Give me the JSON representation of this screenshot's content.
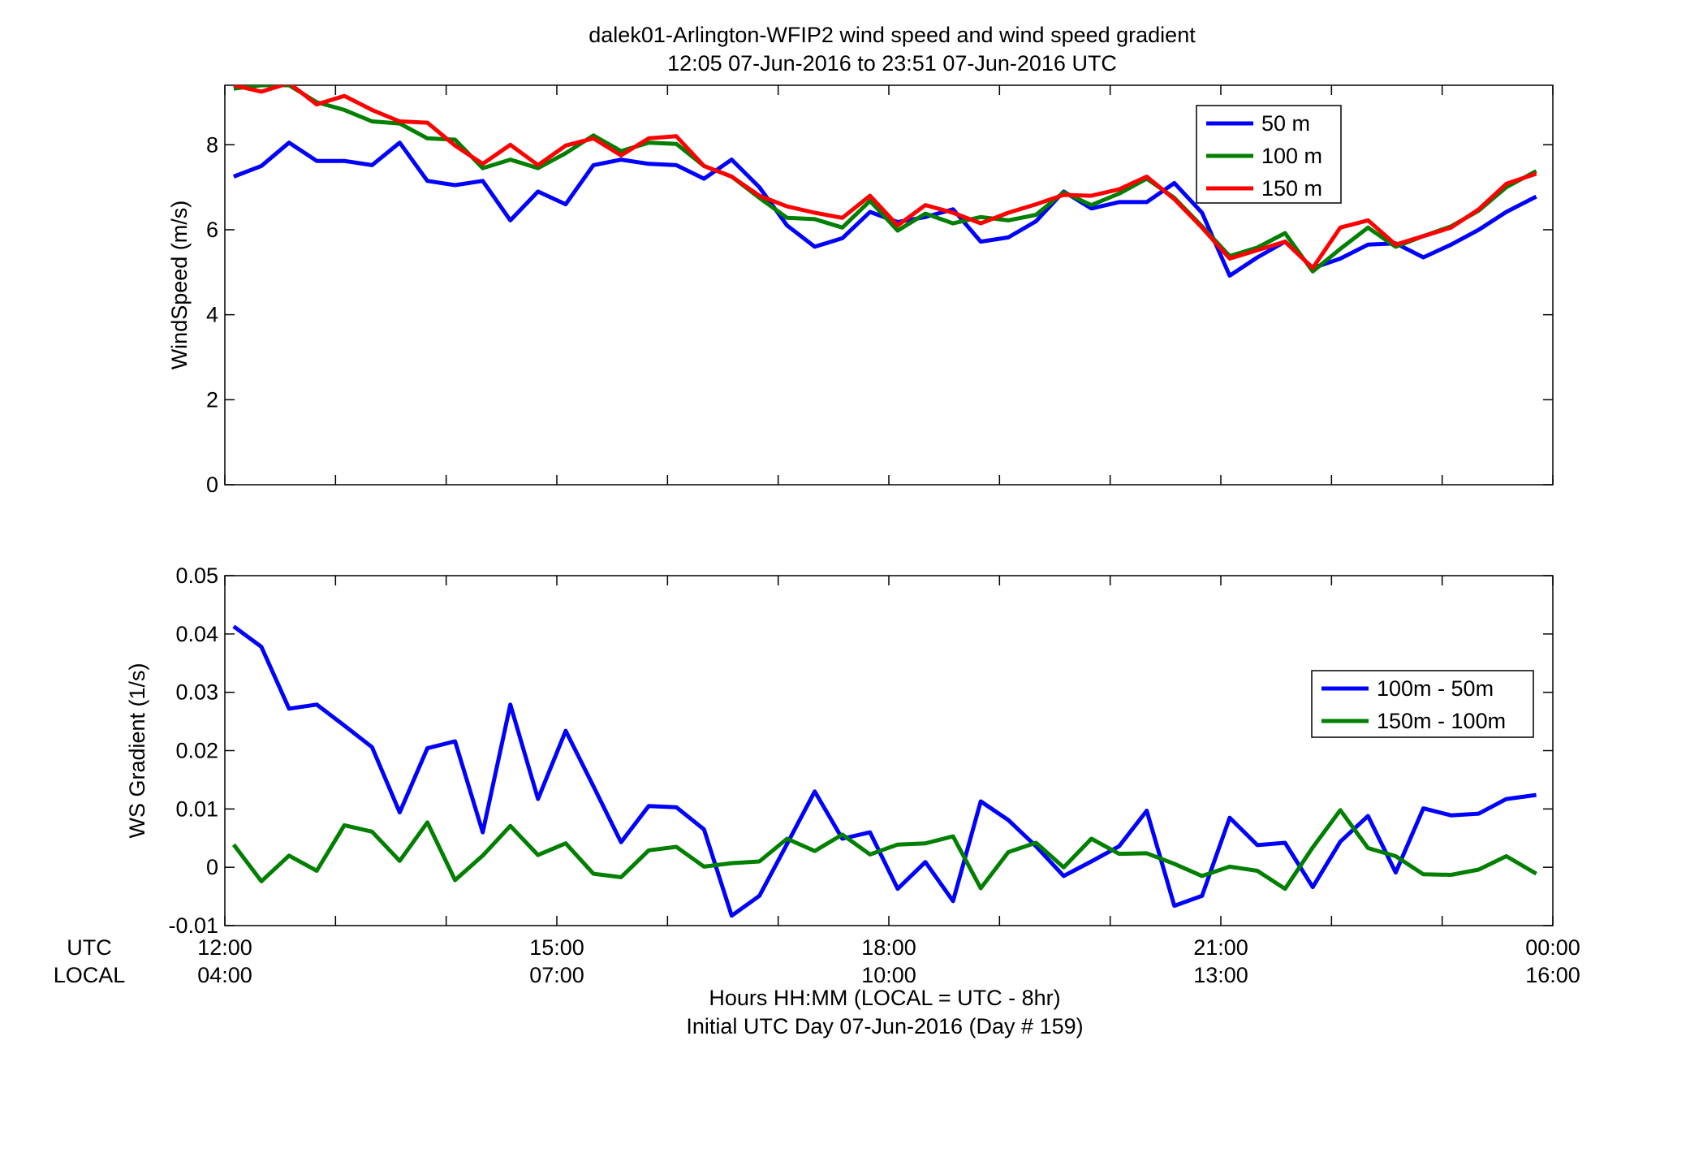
{
  "title_line1": "dalek01-Arlington-WFIP2  wind speed and wind speed gradient",
  "title_line2": "12:05 07-Jun-2016 to 23:51 07-Jun-2016  UTC",
  "row_label_utc": "UTC",
  "row_label_local": "LOCAL",
  "xlabel_line1": "Hours HH:MM  (LOCAL = UTC - 8hr)",
  "xlabel_line2": "Initial UTC Day 07-Jun-2016 (Day # 159)",
  "colors": {
    "blue": "#0000ff",
    "green": "#007f00",
    "red": "#ff0000"
  },
  "chart_data": [
    {
      "type": "line",
      "ylabel": "WindSpeed (m/s)",
      "ylim": [
        0,
        9.4
      ],
      "yticks": [
        0,
        2,
        4,
        6,
        8
      ],
      "ytick_labels": [
        "0",
        "2",
        "4",
        "6",
        "8"
      ],
      "xlim": [
        12.0,
        24.0
      ],
      "xticks": [
        12,
        15,
        18,
        21,
        24
      ],
      "xtick_labels_utc": [
        "12:00",
        "15:00",
        "18:00",
        "21:00",
        "00:00"
      ],
      "xtick_labels_local": [
        "04:00",
        "07:00",
        "10:00",
        "13:00",
        "16:00"
      ],
      "legend_position": "top-right",
      "x": [
        12.08,
        12.33,
        12.58,
        12.83,
        13.08,
        13.33,
        13.58,
        13.83,
        14.08,
        14.33,
        14.58,
        14.83,
        15.08,
        15.33,
        15.58,
        15.83,
        16.08,
        16.33,
        16.58,
        16.83,
        17.08,
        17.33,
        17.58,
        17.83,
        18.08,
        18.33,
        18.58,
        18.83,
        19.08,
        19.33,
        19.58,
        19.83,
        20.08,
        20.33,
        20.58,
        20.83,
        21.08,
        21.33,
        21.58,
        21.83,
        22.08,
        22.33,
        22.58,
        22.83,
        23.08,
        23.33,
        23.58,
        23.85
      ],
      "series": [
        {
          "name": "50 m",
          "color": "blue",
          "values": [
            7.25,
            7.5,
            8.05,
            7.62,
            7.62,
            7.52,
            8.05,
            7.15,
            7.05,
            7.15,
            6.22,
            6.9,
            6.6,
            7.52,
            7.65,
            7.55,
            7.52,
            7.2,
            7.65,
            7.0,
            6.1,
            5.6,
            5.8,
            6.42,
            6.18,
            6.3,
            6.48,
            5.72,
            5.82,
            6.2,
            6.9,
            6.5,
            6.65,
            6.65,
            7.1,
            6.4,
            4.92,
            5.35,
            5.72,
            5.1,
            5.32,
            5.65,
            5.68,
            5.35,
            5.65,
            6.0,
            6.42,
            6.78
          ]
        },
        {
          "name": "100 m",
          "color": "green",
          "values": [
            9.32,
            9.4,
            9.4,
            9.0,
            8.82,
            8.55,
            8.5,
            8.15,
            8.12,
            7.45,
            7.65,
            7.45,
            7.8,
            8.22,
            7.85,
            8.05,
            8.02,
            7.5,
            7.25,
            6.75,
            6.28,
            6.25,
            6.05,
            6.68,
            5.98,
            6.38,
            6.15,
            6.3,
            6.22,
            6.35,
            6.88,
            6.58,
            6.85,
            7.2,
            6.75,
            6.08,
            5.38,
            5.58,
            5.92,
            5.02,
            5.55,
            6.05,
            5.6,
            5.85,
            6.08,
            6.45,
            7.0,
            7.38
          ]
        },
        {
          "name": "150 m",
          "color": "red",
          "values": [
            9.4,
            9.25,
            9.45,
            8.95,
            9.15,
            8.82,
            8.55,
            8.52,
            7.98,
            7.55,
            8.0,
            7.52,
            7.98,
            8.15,
            7.75,
            8.15,
            8.2,
            7.5,
            7.25,
            6.8,
            6.55,
            6.4,
            6.28,
            6.8,
            6.1,
            6.58,
            6.4,
            6.15,
            6.4,
            6.6,
            6.82,
            6.8,
            6.95,
            7.25,
            6.72,
            6.05,
            5.32,
            5.52,
            5.72,
            5.1,
            6.05,
            6.22,
            5.65,
            5.85,
            6.05,
            6.48,
            7.08,
            7.32
          ]
        }
      ]
    },
    {
      "type": "line",
      "ylabel": "WS Gradient (1/s)",
      "ylim": [
        -0.01,
        0.05
      ],
      "yticks": [
        -0.01,
        0,
        0.01,
        0.02,
        0.03,
        0.04,
        0.05
      ],
      "ytick_labels": [
        "-0.01",
        "0",
        "0.01",
        "0.02",
        "0.03",
        "0.04",
        "0.05"
      ],
      "xlim": [
        12.0,
        24.0
      ],
      "xticks": [
        12,
        15,
        18,
        21,
        24
      ],
      "xtick_labels_utc": [
        "12:00",
        "15:00",
        "18:00",
        "21:00",
        "00:00"
      ],
      "xtick_labels_local": [
        "04:00",
        "07:00",
        "10:00",
        "13:00",
        "16:00"
      ],
      "legend_position": "right",
      "x": [
        12.08,
        12.33,
        12.58,
        12.83,
        13.08,
        13.33,
        13.58,
        13.83,
        14.08,
        14.33,
        14.58,
        14.83,
        15.08,
        15.33,
        15.58,
        15.83,
        16.08,
        16.33,
        16.58,
        16.83,
        17.08,
        17.33,
        17.58,
        17.83,
        18.08,
        18.33,
        18.58,
        18.83,
        19.08,
        19.33,
        19.58,
        19.83,
        20.08,
        20.33,
        20.58,
        20.83,
        21.08,
        21.33,
        21.58,
        21.83,
        22.08,
        22.33,
        22.58,
        22.83,
        23.08,
        23.33,
        23.58,
        23.85
      ],
      "series": [
        {
          "name": "100m - 50m",
          "color": "blue",
          "values": [
            0.0413,
            0.0378,
            0.0272,
            0.0279,
            0.0243,
            0.0206,
            0.0094,
            0.0204,
            0.0216,
            0.006,
            0.0279,
            0.0117,
            0.0234,
            0.0139,
            0.0043,
            0.0105,
            0.0103,
            0.0065,
            -0.0083,
            -0.0049,
            0.004,
            0.013,
            0.0049,
            0.006,
            -0.0037,
            0.0009,
            -0.0058,
            0.0113,
            0.0081,
            0.0036,
            -0.0015,
            0.001,
            0.0036,
            0.0097,
            -0.0066,
            -0.0049,
            0.0085,
            0.0038,
            0.0042,
            -0.0034,
            0.0044,
            0.0088,
            -0.0009,
            0.0101,
            0.0089,
            0.0092,
            0.0117,
            0.0124
          ]
        },
        {
          "name": "150m - 100m",
          "color": "green",
          "values": [
            0.0039,
            -0.0024,
            0.002,
            -0.0006,
            0.0072,
            0.0061,
            0.0011,
            0.0077,
            -0.0022,
            0.002,
            0.0071,
            0.0021,
            0.0041,
            -0.0011,
            -0.0017,
            0.0029,
            0.0035,
            0.0001,
            0.0007,
            0.001,
            0.0049,
            0.0028,
            0.0056,
            0.0022,
            0.0039,
            0.0041,
            0.0053,
            -0.0036,
            0.0026,
            0.0042,
            0.0,
            0.0049,
            0.0023,
            0.0024,
            0.0006,
            -0.0015,
            0.0001,
            -0.0006,
            -0.0037,
            0.0034,
            0.0098,
            0.0033,
            0.0019,
            -0.0012,
            -0.0013,
            -0.0004,
            0.0019,
            -0.0011
          ]
        }
      ]
    }
  ]
}
